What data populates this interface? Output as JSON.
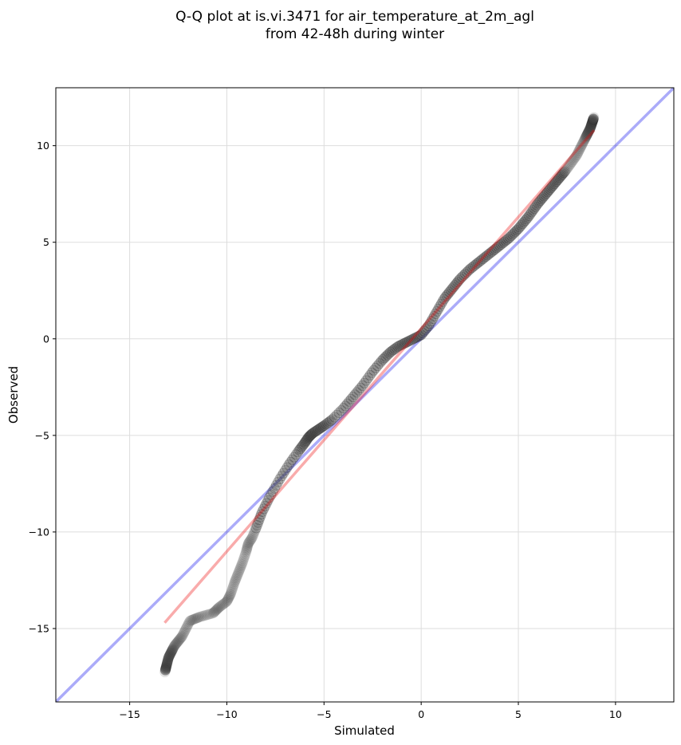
{
  "chart_data": {
    "type": "scatter",
    "title_line1": "Q-Q plot at is.vi.3471 for air_temperature_at_2m_agl",
    "title_line2": "from 42-48h during winter",
    "xlabel": "Simulated",
    "ylabel": "Observed",
    "xlim": [
      -18.8,
      13.0
    ],
    "ylim": [
      -18.8,
      13.0
    ],
    "xticks": [
      -15,
      -10,
      -5,
      0,
      5,
      10
    ],
    "yticks": [
      -15,
      -10,
      -5,
      0,
      5,
      10
    ],
    "xtick_labels": [
      "−15",
      "−10",
      "−5",
      "0",
      "5",
      "10"
    ],
    "ytick_labels": [
      "−15",
      "−10",
      "−5",
      "0",
      "5",
      "10"
    ],
    "grid": true,
    "identity_line": {
      "color": "#0000ee",
      "from": [
        -18.8,
        -18.8
      ],
      "to": [
        13.0,
        13.0
      ]
    },
    "fit_line": {
      "color": "#ee0000",
      "from": [
        -13.2,
        -14.7
      ],
      "to": [
        8.9,
        10.8
      ]
    },
    "colors": {
      "points": "#404040",
      "points_outline": "#000000",
      "dense_overlay": "#000050",
      "grid": "#dddddd"
    },
    "quantile_anchors": {
      "x": [
        -13.2,
        -13.0,
        -12.7,
        -12.3,
        -11.9,
        -11.4,
        -10.7,
        -10.4,
        -10.0,
        -9.8,
        -9.6,
        -9.4,
        -9.2,
        -9.0,
        -8.9,
        -8.7,
        -8.5,
        -8.2,
        -7.8,
        -7.3,
        -6.8,
        -6.3,
        -6.0,
        -5.8,
        -5.6,
        -5.3,
        -5.0,
        -4.6,
        -4.0,
        -3.5,
        -3.0,
        -2.5,
        -2.0,
        -1.6,
        -1.2,
        -0.8,
        -0.4,
        0.0,
        0.4,
        0.8,
        1.2,
        1.6,
        2.0,
        2.5,
        3.0,
        3.5,
        4.0,
        4.5,
        5.0,
        5.5,
        6.0,
        6.5,
        7.0,
        7.5,
        8.0,
        8.4,
        8.7,
        8.9
      ],
      "y": [
        -17.3,
        -16.5,
        -15.9,
        -15.4,
        -14.6,
        -14.4,
        -14.2,
        -13.9,
        -13.6,
        -13.2,
        -12.6,
        -12.1,
        -11.6,
        -11.0,
        -10.6,
        -10.3,
        -9.8,
        -9.0,
        -8.2,
        -7.3,
        -6.5,
        -5.8,
        -5.4,
        -5.1,
        -4.9,
        -4.7,
        -4.5,
        -4.2,
        -3.6,
        -3.0,
        -2.4,
        -1.7,
        -1.1,
        -0.7,
        -0.4,
        -0.2,
        0.0,
        0.2,
        0.7,
        1.4,
        2.1,
        2.6,
        3.1,
        3.6,
        4.0,
        4.4,
        4.8,
        5.2,
        5.7,
        6.3,
        7.0,
        7.6,
        8.2,
        8.8,
        9.5,
        10.3,
        10.9,
        11.5
      ]
    },
    "point_count": 460
  }
}
